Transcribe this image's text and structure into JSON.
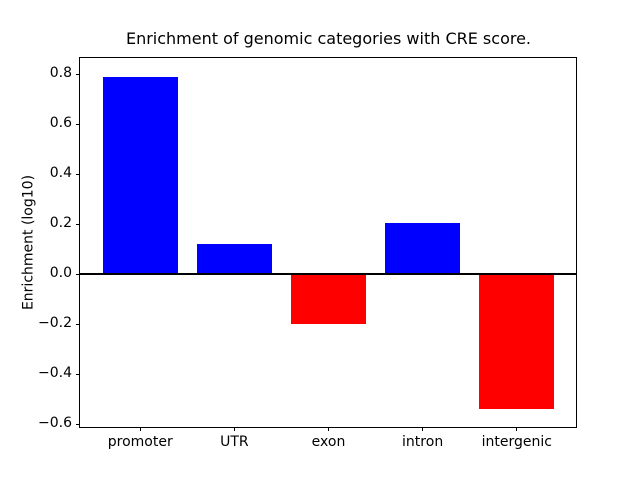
{
  "chart_data": {
    "type": "bar",
    "title": "Enrichment of genomic categories with CRE score.",
    "xlabel": "",
    "ylabel": "Enrichment (log10)",
    "categories": [
      "promoter",
      "UTR",
      "exon",
      "intron",
      "intergenic"
    ],
    "values": [
      0.79,
      0.12,
      -0.2,
      0.205,
      -0.54
    ],
    "colors": {
      "positive": "#0000ff",
      "negative": "#ff0000",
      "axis": "#000000",
      "background": "#ffffff"
    },
    "ylim": [
      -0.612,
      0.864
    ],
    "yticks": [
      -0.6,
      -0.4,
      -0.2,
      0.0,
      0.2,
      0.4,
      0.6,
      0.8
    ],
    "grid": false,
    "zero_line": true,
    "legend_position": "none"
  }
}
